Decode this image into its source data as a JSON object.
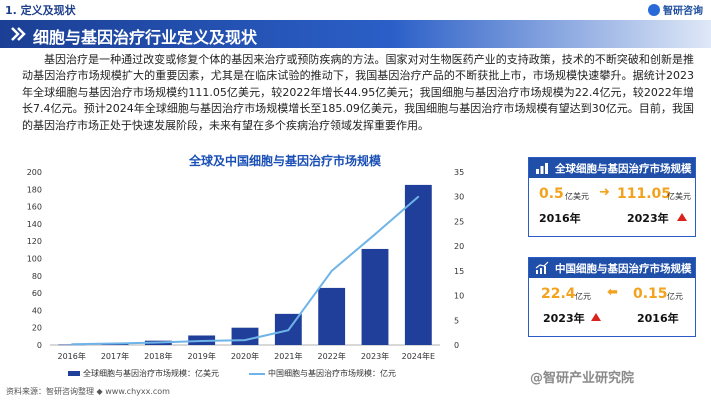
{
  "header": {
    "section": "1. 定义及现状",
    "logo": "智研咨询",
    "title": "细胞与基因治疗行业定义及现状"
  },
  "paragraph": "基因治疗是一种通过改变或修复个体的基因来治疗或预防疾病的方法。国家对对生物医药产业的支持政策，技术的不断突破和创新是推动基因治疗市场规模扩大的重要因素，尤其是在临床试验的推动下，我国基因治疗产品的不断获批上市，市场规模快速攀升。据统计2023年全球细胞与基因治疗市场规模约111.05亿美元，较2022年增长44.95亿美元；我国细胞与基因治疗市场规模为22.4亿元，较2022年增长7.4亿元。预计2024年全球细胞与基因治疗市场规模增长至185.09亿美元，我国细胞与基因治疗市场规模有望达到30亿元。目前，我国的基因治疗市场正处于快速发展阶段，未来有望在多个疾病治疗领域发挥重要作用。",
  "chart_data": {
    "type": "bar",
    "title": "全球及中国细胞与基因治疗市场规模",
    "categories": [
      "2016年",
      "2017年",
      "2018年",
      "2019年",
      "2020年",
      "2021年",
      "2022年",
      "2023年",
      "2024年E"
    ],
    "series": [
      {
        "name": "全球细胞与基因治疗市场规模：亿美元",
        "type": "bar",
        "axis": "left",
        "values": [
          0.5,
          1.5,
          5,
          11,
          20,
          36,
          66,
          111.05,
          185.09
        ]
      },
      {
        "name": "中国细胞与基因治疗市场规模：亿元",
        "type": "line",
        "axis": "right",
        "values": [
          0.15,
          0.3,
          0.5,
          0.8,
          1.0,
          3.0,
          15,
          22.4,
          30
        ]
      }
    ],
    "yleft": {
      "ticks": [
        "0",
        "20",
        "40",
        "60",
        "80",
        "100",
        "120",
        "140",
        "160",
        "180",
        "200"
      ],
      "lim": [
        0,
        200
      ]
    },
    "yright": {
      "ticks": [
        "0",
        "5",
        "10",
        "15",
        "20",
        "25",
        "30",
        "35"
      ],
      "lim": [
        0,
        35
      ]
    },
    "colors": {
      "bar": "#1f3f9a",
      "line": "#6fb4e8"
    }
  },
  "legend": {
    "bar": "全球细胞与基因治疗市场规模：亿美元",
    "line": "中国细胞与基因治疗市场规模：亿元"
  },
  "source": "资料来源：智研咨询整理    ◆ www.chyxx.com",
  "watermark": "@智研产业研究院",
  "cards": {
    "global": {
      "title": "全球细胞与基因治疗市场规模",
      "start_val": "0.5",
      "start_unit": "亿美元",
      "start_year": "2016年",
      "end_val": "111.05",
      "end_unit": "亿美元",
      "end_year": "2023年"
    },
    "china": {
      "title": "中国细胞与基因治疗市场规模",
      "start_val": "22.4",
      "start_unit": "亿元",
      "start_year": "2023年",
      "end_val": "0.15",
      "end_unit": "亿元",
      "end_year": "2016年"
    }
  }
}
